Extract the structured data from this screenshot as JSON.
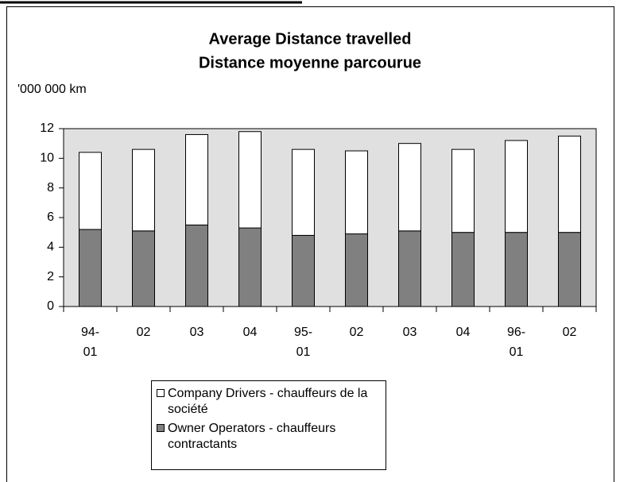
{
  "chart_data": {
    "type": "stacked_bar",
    "title": "Average Distance travelled",
    "subtitle": "Distance moyenne parcourue",
    "y_label": "'000 000 km",
    "categories": [
      "94-\n01",
      "02",
      "03",
      "04",
      "95-\n01",
      "02",
      "03",
      "04",
      "96-\n01",
      "02"
    ],
    "series": [
      {
        "name": "Owner Operators - chauffeurs contractants",
        "color": "#808080",
        "values": [
          5.2,
          5.1,
          5.5,
          5.3,
          4.8,
          4.9,
          5.1,
          5.0,
          5.0,
          5.0
        ]
      },
      {
        "name": "Company Drivers - chauffeurs de la société",
        "color": "#ffffff",
        "values": [
          5.2,
          5.5,
          6.1,
          6.5,
          5.8,
          5.6,
          5.9,
          5.6,
          6.2,
          6.5
        ]
      }
    ],
    "ylim": [
      0,
      12
    ],
    "yticks": [
      0,
      2,
      4,
      6,
      8,
      10,
      12
    ],
    "grid": false,
    "plot_background": "#e0e0e0"
  }
}
